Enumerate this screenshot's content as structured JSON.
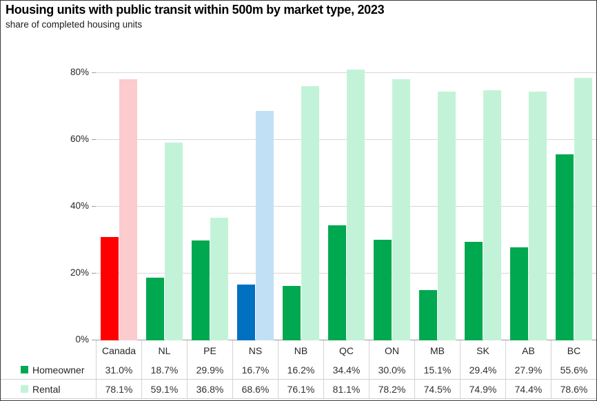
{
  "chart_data": {
    "type": "bar",
    "title": "Housing units with public transit within 500m by market type, 2023",
    "subtitle": "share of completed housing units",
    "categories": [
      "Canada",
      "NL",
      "PE",
      "NS",
      "NB",
      "QC",
      "ON",
      "MB",
      "SK",
      "AB",
      "BC"
    ],
    "series": [
      {
        "name": "Homeowner",
        "values": [
          31.0,
          18.7,
          29.9,
          16.7,
          16.2,
          34.4,
          30.0,
          15.1,
          29.4,
          27.9,
          55.6
        ],
        "labels": [
          "31.0%",
          "18.7%",
          "29.9%",
          "16.7%",
          "16.2%",
          "34.4%",
          "30.0%",
          "15.1%",
          "29.4%",
          "27.9%",
          "55.6%"
        ]
      },
      {
        "name": "Rental",
        "values": [
          78.1,
          59.1,
          36.8,
          68.6,
          76.1,
          81.1,
          78.2,
          74.5,
          74.9,
          74.4,
          78.6
        ],
        "labels": [
          "78.1%",
          "59.1%",
          "36.8%",
          "68.6%",
          "76.1%",
          "81.1%",
          "78.2%",
          "74.5%",
          "74.9%",
          "74.4%",
          "78.6%"
        ]
      }
    ],
    "y_axis": {
      "ticks": [
        0,
        20,
        40,
        60,
        80
      ],
      "tick_labels": [
        "0%",
        "20%",
        "40%",
        "60%",
        "80%"
      ],
      "ylim": [
        0,
        83
      ]
    },
    "grid": true,
    "legend_position": "table-left",
    "colors": {
      "homeowner_default": "#00A850",
      "rental_default": "#C2F3D8",
      "highlights": {
        "Canada": {
          "homeowner": "#FE0000",
          "rental": "#FBCBCD"
        },
        "NS": {
          "homeowner": "#0070C0",
          "rental": "#C2E0F5"
        }
      },
      "gridline": "#d6d6d6",
      "axis": "#9b9b9b"
    }
  }
}
